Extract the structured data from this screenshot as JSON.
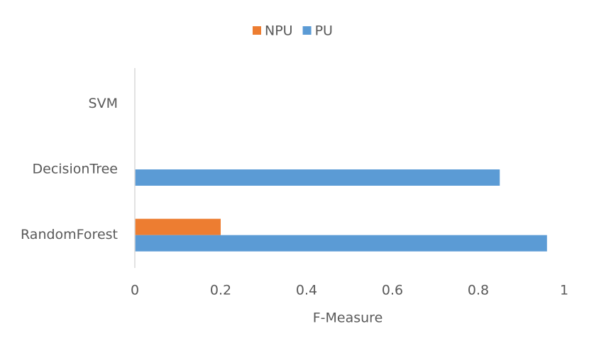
{
  "chart_data": {
    "type": "hbar",
    "x_label": "F-Measure",
    "categories": [
      "SVM",
      "DecisionTree",
      "RandomForest"
    ],
    "series": [
      {
        "name": "NPU",
        "color": "#ed7d31",
        "values": [
          0,
          0,
          0.2
        ]
      },
      {
        "name": "PU",
        "color": "#5b9bd5",
        "values": [
          0,
          0.85,
          0.96
        ]
      }
    ],
    "xlim": [
      0,
      1
    ],
    "xticks": [
      0,
      0.2,
      0.4,
      0.6,
      0.8,
      1
    ],
    "grid": false,
    "legend": "top"
  }
}
